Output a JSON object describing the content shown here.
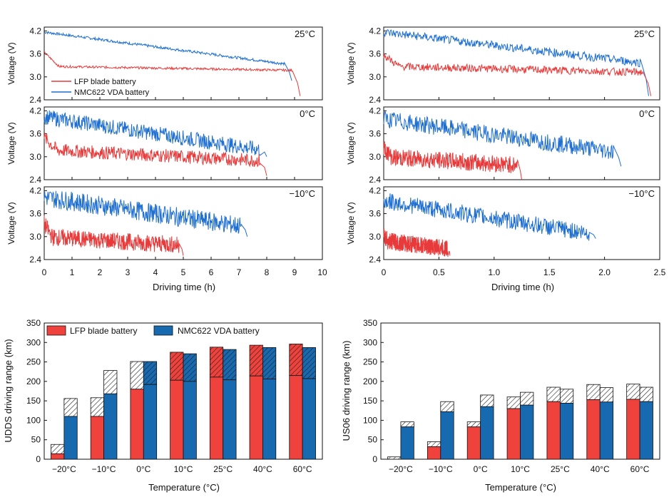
{
  "colors": {
    "lfp": "#e83a3a",
    "nmc": "#1f6fd1",
    "lfp_bar": "#f0423c",
    "nmc_bar": "#1769b0",
    "axis": "#111111",
    "hatch_bg": "#ffffff"
  },
  "chart_data": [
    {
      "id": "uddss_voltage",
      "type": "line",
      "xlabel": "Driving time (h)",
      "ylabel": "Voltage (V)",
      "xlim": [
        0,
        10
      ],
      "xticks": [
        "0",
        "1",
        "2",
        "3",
        "4",
        "5",
        "6",
        "7",
        "8",
        "9",
        "10"
      ],
      "ylim": [
        2.4,
        4.3
      ],
      "yticks": [
        "2.4",
        "3.0",
        "3.6",
        "4.2"
      ],
      "legend": [
        "LFP blade battery",
        "NMC622 VDA battery"
      ],
      "panels": [
        {
          "label": "25°C",
          "lfp": {
            "start": 3.65,
            "plateau": 3.28,
            "end_plateau": 3.18,
            "t_end": 9.2,
            "v_end": 2.5,
            "noise": 0.06
          },
          "nmc": {
            "start": 4.18,
            "end_plateau": 3.35,
            "t_end": 8.9,
            "v_end": 2.9,
            "noise": 0.07
          }
        },
        {
          "label": "0°C",
          "lfp": {
            "start": 3.55,
            "plateau": 3.22,
            "end_plateau": 2.95,
            "t_end": 8.0,
            "v_end": 2.5,
            "noise": 0.35
          },
          "nmc": {
            "start": 4.1,
            "end_plateau": 3.25,
            "t_end": 8.0,
            "v_end": 3.0,
            "noise": 0.4
          }
        },
        {
          "label": "−10°C",
          "lfp": {
            "start": 3.4,
            "plateau": 3.05,
            "end_plateau": 2.85,
            "t_end": 5.0,
            "v_end": 2.5,
            "noise": 0.45
          },
          "nmc": {
            "start": 4.1,
            "end_plateau": 3.35,
            "t_end": 7.3,
            "v_end": 3.0,
            "noise": 0.5
          }
        }
      ]
    },
    {
      "id": "us06_voltage",
      "type": "line",
      "xlabel": "Driving time (h)",
      "ylabel": "Voltage (V)",
      "xlim": [
        0,
        2.5
      ],
      "xticks": [
        "0",
        "0.5",
        "1.0",
        "1.5",
        "2.0",
        "2.5"
      ],
      "ylim": [
        2.4,
        4.3
      ],
      "yticks": [
        "2.4",
        "3.0",
        "3.6",
        "4.2"
      ],
      "panels": [
        {
          "label": "25°C",
          "lfp": {
            "start": 3.6,
            "plateau": 3.3,
            "end_plateau": 3.15,
            "t_end": 2.42,
            "v_end": 2.5,
            "noise": 0.2
          },
          "nmc": {
            "start": 4.2,
            "end_plateau": 3.4,
            "t_end": 2.4,
            "v_end": 2.5,
            "noise": 0.22
          }
        },
        {
          "label": "0°C",
          "lfp": {
            "start": 3.3,
            "plateau": 3.05,
            "end_plateau": 2.85,
            "t_end": 1.25,
            "v_end": 2.4,
            "noise": 0.45
          },
          "nmc": {
            "start": 4.05,
            "end_plateau": 3.2,
            "t_end": 2.15,
            "v_end": 2.75,
            "noise": 0.45
          }
        },
        {
          "label": "−10°C",
          "lfp": {
            "start": 3.15,
            "plateau": 2.95,
            "end_plateau": 2.75,
            "t_end": 0.6,
            "v_end": 2.5,
            "noise": 0.45
          },
          "nmc": {
            "start": 4.0,
            "end_plateau": 3.15,
            "t_end": 1.92,
            "v_end": 2.95,
            "noise": 0.45
          }
        }
      ]
    },
    {
      "id": "udds_range",
      "type": "bar",
      "ylabel": "UDDS driving range (km)",
      "xlabel": "Temperature (°C)",
      "ylim": [
        0,
        350
      ],
      "yticks": [
        "0",
        "50",
        "100",
        "150",
        "200",
        "250",
        "300",
        "350"
      ],
      "categories": [
        "−20°C",
        "−10°C",
        "0°C",
        "10°C",
        "25°C",
        "40°C",
        "60°C"
      ],
      "legend": [
        "LFP blade battery",
        "NMC622 VDA battery"
      ],
      "series": [
        {
          "name": "LFP blade battery",
          "solid": [
            14,
            110,
            180,
            203,
            211,
            214,
            215
          ],
          "total": [
            38,
            158,
            251,
            275,
            288,
            293,
            296
          ]
        },
        {
          "name": "NMC622 VDA battery",
          "solid": [
            110,
            168,
            192,
            200,
            204,
            206,
            207
          ],
          "total": [
            156,
            228,
            251,
            271,
            282,
            287,
            287
          ]
        }
      ]
    },
    {
      "id": "us06_range",
      "type": "bar",
      "ylabel": "US06 driving range (km)",
      "xlabel": "Temperature (°C)",
      "ylim": [
        0,
        350
      ],
      "yticks": [
        "0",
        "50",
        "100",
        "150",
        "200",
        "250",
        "300",
        "350"
      ],
      "categories": [
        "−20°C",
        "−10°C",
        "0°C",
        "10°C",
        "25°C",
        "40°C",
        "60°C"
      ],
      "series": [
        {
          "name": "LFP blade battery",
          "solid": [
            0,
            32,
            83,
            130,
            148,
            153,
            154
          ],
          "total": [
            6,
            45,
            96,
            160,
            185,
            192,
            193
          ]
        },
        {
          "name": "NMC622 VDA battery",
          "solid": [
            83,
            122,
            135,
            139,
            144,
            147,
            148
          ],
          "total": [
            96,
            148,
            165,
            172,
            180,
            184,
            185
          ]
        }
      ]
    }
  ]
}
